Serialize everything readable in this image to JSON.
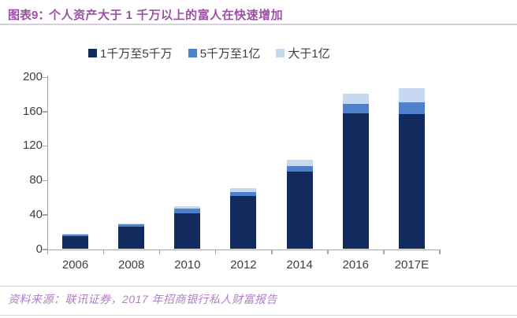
{
  "header": {
    "figure_label": "图表9：",
    "title": "个人资产大于 1 千万以上的富人在快速增加"
  },
  "footer": {
    "source": "资料来源：联讯证券，2017 年招商银行私人财富报告"
  },
  "colors": {
    "title_accent": "#9c4fa4",
    "source_text": "#b07ec6",
    "axis": "#a6a6a6",
    "tick_label": "#3e3e3e"
  },
  "chart_data": {
    "type": "bar",
    "stacked": true,
    "title": "个人资产大于 1 千万以上的富人在快速增加",
    "categories": [
      "2006",
      "2008",
      "2010",
      "2012",
      "2014",
      "2016",
      "2017E"
    ],
    "series": [
      {
        "name": "1千万至5千万",
        "color": "#132a5e",
        "values": [
          15,
          26,
          42,
          62,
          90,
          158,
          157
        ]
      },
      {
        "name": "5千万至1亿",
        "color": "#4e81c9",
        "values": [
          2,
          3,
          5,
          4,
          7,
          11,
          14
        ]
      },
      {
        "name": "大于1亿",
        "color": "#c6d9f1",
        "values": [
          1,
          1,
          3,
          5,
          7,
          12,
          16
        ]
      }
    ],
    "totals": [
      18,
      30,
      50,
      71,
      104,
      181,
      187
    ],
    "xlabel": "",
    "ylabel": "",
    "ylim": [
      0,
      200
    ],
    "y_ticks": [
      0,
      40,
      80,
      120,
      160,
      200
    ],
    "grid": false,
    "legend_position": "top"
  }
}
